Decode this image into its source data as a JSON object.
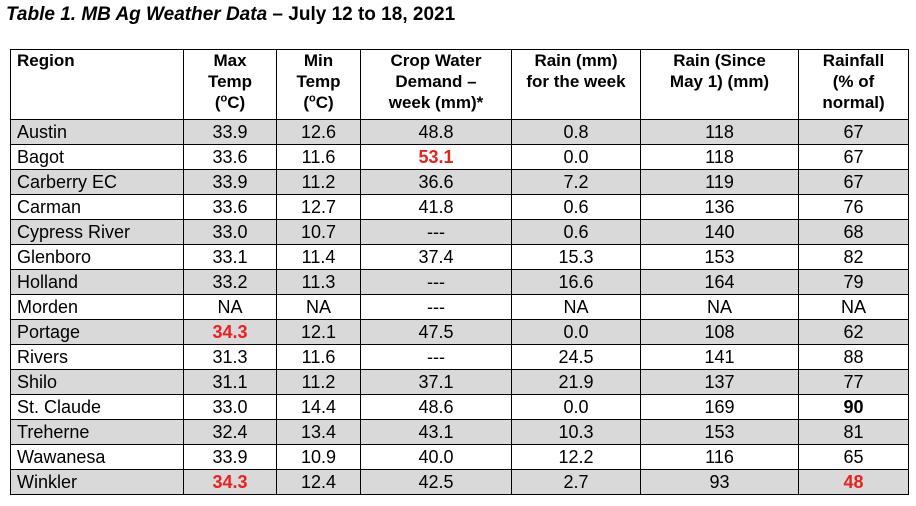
{
  "title": {
    "main": "Table 1. MB Ag Weather Data",
    "dates": " – July 12 to 18, 2021"
  },
  "headers": {
    "region": "Region",
    "max_temp": [
      "Max",
      "Temp",
      "°C"
    ],
    "min_temp": [
      "Min",
      "Temp",
      "°C"
    ],
    "crop_water": [
      "Crop Water",
      "Demand –",
      "week (mm)*"
    ],
    "rain_week": [
      "Rain (mm)",
      "for the week"
    ],
    "rain_since": [
      "Rain (Since",
      "May 1) (mm)"
    ],
    "rainfall_pct": [
      "Rainfall",
      "(% of",
      "normal)"
    ]
  },
  "emphasis_colors": {
    "highlight": "#e8231f",
    "row_shade": "#d9d9d9"
  },
  "rows": [
    {
      "region": "Austin",
      "max_temp": "33.9",
      "min_temp": "12.6",
      "crop_water": "48.8",
      "rain_week": "0.8",
      "rain_since": "118",
      "rainfall_pct": "67"
    },
    {
      "region": "Bagot",
      "max_temp": "33.6",
      "min_temp": "11.6",
      "crop_water": "53.1",
      "rain_week": "0.0",
      "rain_since": "118",
      "rainfall_pct": "67"
    },
    {
      "region": "Carberry EC",
      "max_temp": "33.9",
      "min_temp": "11.2",
      "crop_water": "36.6",
      "rain_week": "7.2",
      "rain_since": "119",
      "rainfall_pct": "67"
    },
    {
      "region": "Carman",
      "max_temp": "33.6",
      "min_temp": "12.7",
      "crop_water": "41.8",
      "rain_week": "0.6",
      "rain_since": "136",
      "rainfall_pct": "76"
    },
    {
      "region": "Cypress River",
      "max_temp": "33.0",
      "min_temp": "10.7",
      "crop_water": "---",
      "rain_week": "0.6",
      "rain_since": "140",
      "rainfall_pct": "68"
    },
    {
      "region": "Glenboro",
      "max_temp": "33.1",
      "min_temp": "11.4",
      "crop_water": "37.4",
      "rain_week": "15.3",
      "rain_since": "153",
      "rainfall_pct": "82"
    },
    {
      "region": "Holland",
      "max_temp": "33.2",
      "min_temp": "11.3",
      "crop_water": "---",
      "rain_week": "16.6",
      "rain_since": "164",
      "rainfall_pct": "79"
    },
    {
      "region": "Morden",
      "max_temp": "NA",
      "min_temp": "NA",
      "crop_water": "---",
      "rain_week": "NA",
      "rain_since": "NA",
      "rainfall_pct": "NA"
    },
    {
      "region": "Portage",
      "max_temp": "34.3",
      "min_temp": "12.1",
      "crop_water": "47.5",
      "rain_week": "0.0",
      "rain_since": "108",
      "rainfall_pct": "62"
    },
    {
      "region": "Rivers",
      "max_temp": "31.3",
      "min_temp": "11.6",
      "crop_water": "---",
      "rain_week": "24.5",
      "rain_since": "141",
      "rainfall_pct": "88"
    },
    {
      "region": "Shilo",
      "max_temp": "31.1",
      "min_temp": "11.2",
      "crop_water": "37.1",
      "rain_week": "21.9",
      "rain_since": "137",
      "rainfall_pct": "77"
    },
    {
      "region": "St. Claude",
      "max_temp": "33.0",
      "min_temp": "14.4",
      "crop_water": "48.6",
      "rain_week": "0.0",
      "rain_since": "169",
      "rainfall_pct": "90"
    },
    {
      "region": "Treherne",
      "max_temp": "32.4",
      "min_temp": "13.4",
      "crop_water": "43.1",
      "rain_week": "10.3",
      "rain_since": "153",
      "rainfall_pct": "81"
    },
    {
      "region": "Wawanesa",
      "max_temp": "33.9",
      "min_temp": "10.9",
      "crop_water": "40.0",
      "rain_week": "12.2",
      "rain_since": "116",
      "rainfall_pct": "65"
    },
    {
      "region": "Winkler",
      "max_temp": "34.3",
      "min_temp": "12.4",
      "crop_water": "42.5",
      "rain_week": "2.7",
      "rain_since": "93",
      "rainfall_pct": "48"
    }
  ]
}
